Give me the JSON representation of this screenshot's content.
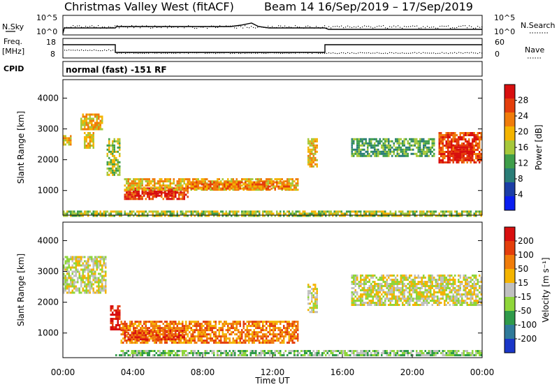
{
  "header": {
    "title": "Christmas Valley West (fitACF)",
    "subtitle": "Beam 14  16/Sep/2019 – 17/Sep/2019"
  },
  "strip_labels": {
    "nsky": "N.Sky",
    "nsearch": "N.Search",
    "freq_top": "Freq.",
    "freq_unit": "[MHz]",
    "nave": "Nave",
    "cpid": "CPID",
    "cpid_text": "normal (fast) -151 RF"
  },
  "strip_ticks": {
    "noise_left": [
      "10^5",
      "10^0"
    ],
    "noise_right": [
      "10^5",
      "10^0"
    ],
    "freq_left": [
      "18",
      "8"
    ],
    "freq_right": [
      "60",
      "0"
    ]
  },
  "chart_data": [
    {
      "type": "heatmap",
      "name": "power",
      "ylabel": "Slant Range [km]",
      "yticks": [
        1000,
        2000,
        3000,
        4000
      ],
      "ylim": [
        200,
        4600
      ],
      "xlim": [
        0,
        24
      ],
      "colorbar": {
        "label": "Power [dB]",
        "ticks": [
          "4",
          "8",
          "12",
          "16",
          "20",
          "24",
          "28"
        ],
        "colors": [
          "#0a1ef0",
          "#1c3ea6",
          "#2a7d77",
          "#3f9e4a",
          "#a6c83a",
          "#f4b400",
          "#f07c0a",
          "#e43e0c",
          "#d80f0f"
        ]
      },
      "regions": [
        {
          "t0": 3.5,
          "t1": 7.2,
          "r0": 700,
          "r1": 1100,
          "level": 7
        },
        {
          "t0": 4.0,
          "t1": 6.5,
          "r0": 800,
          "r1": 1000,
          "level": 8
        },
        {
          "t0": 3.5,
          "t1": 13.5,
          "r0": 1000,
          "r1": 1400,
          "level": 5
        },
        {
          "t0": 7.0,
          "t1": 13.0,
          "r0": 1050,
          "r1": 1300,
          "level": 6
        },
        {
          "t0": 2.5,
          "t1": 3.3,
          "r0": 1500,
          "r1": 2700,
          "level": 4
        },
        {
          "t0": 0.0,
          "t1": 0.5,
          "r0": 2500,
          "r1": 2800,
          "level": 5
        },
        {
          "t0": 1.0,
          "t1": 2.3,
          "r0": 3000,
          "r1": 3500,
          "level": 5
        },
        {
          "t0": 1.2,
          "t1": 1.8,
          "r0": 2400,
          "r1": 2900,
          "level": 5
        },
        {
          "t0": 14.0,
          "t1": 14.6,
          "r0": 1800,
          "r1": 2700,
          "level": 5
        },
        {
          "t0": 16.5,
          "t1": 21.3,
          "r0": 2100,
          "r1": 2700,
          "level": 3
        },
        {
          "t0": 21.5,
          "t1": 24.0,
          "r0": 1900,
          "r1": 2900,
          "level": 7
        },
        {
          "t0": 22.0,
          "t1": 23.5,
          "r0": 2000,
          "r1": 2500,
          "level": 8
        },
        {
          "t0": 0.0,
          "t1": 24.0,
          "r0": 200,
          "r1": 350,
          "level": 4
        }
      ]
    },
    {
      "type": "heatmap",
      "name": "velocity",
      "ylabel": "Slant Range [km]",
      "yticks": [
        1000,
        2000,
        3000,
        4000
      ],
      "ylim": [
        200,
        4600
      ],
      "xlim": [
        0,
        24
      ],
      "xticks": [
        "00:00",
        "04:00",
        "08:00",
        "12:00",
        "16:00",
        "20:00",
        "00:00"
      ],
      "xlabel": "Time UT",
      "colorbar": {
        "label": "Velocity [m s⁻¹]",
        "ticks": [
          "200",
          "100",
          "50",
          "15",
          "-15",
          "-50",
          "-100",
          "-200"
        ],
        "colors": [
          "#1a36c8",
          "#2f7a9a",
          "#2f9a4a",
          "#8fd63a",
          "#c0c0c0",
          "#f4b400",
          "#f07c0a",
          "#e43e0c",
          "#d80f0f"
        ]
      },
      "regions": [
        {
          "t0": 3.3,
          "t1": 13.5,
          "r0": 700,
          "r1": 1400,
          "level": 6
        },
        {
          "t0": 3.5,
          "t1": 7.0,
          "r0": 800,
          "r1": 1100,
          "level": 7
        },
        {
          "t0": 2.7,
          "t1": 3.3,
          "r0": 1100,
          "r1": 1900,
          "level": 8
        },
        {
          "t0": 0.0,
          "t1": 2.5,
          "r0": 2300,
          "r1": 3500,
          "level": 4
        },
        {
          "t0": 14.0,
          "t1": 14.6,
          "r0": 1700,
          "r1": 2600,
          "level": 4
        },
        {
          "t0": 16.5,
          "t1": 24.0,
          "r0": 1900,
          "r1": 2900,
          "level": 4
        },
        {
          "t0": 3.0,
          "t1": 24.0,
          "r0": 250,
          "r1": 450,
          "level": 3
        }
      ]
    }
  ]
}
